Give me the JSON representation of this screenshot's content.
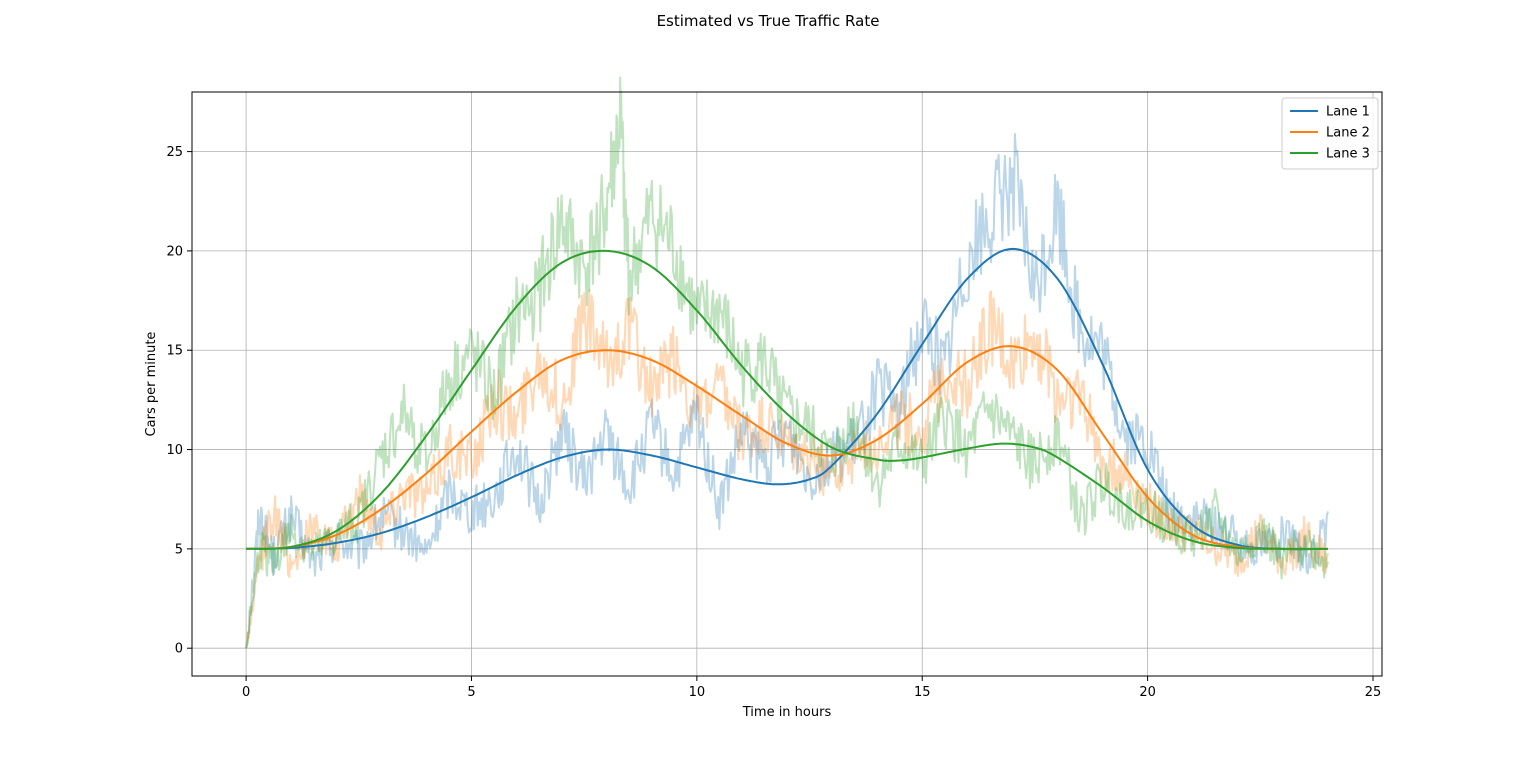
{
  "chart_data": {
    "type": "line",
    "title": "Estimated vs True Traffic Rate",
    "xlabel": "Time in hours",
    "ylabel": "Cars per minute",
    "xlim": [
      -1.2,
      25.2
    ],
    "ylim": [
      -1.4,
      28.0
    ],
    "xticks": [
      0,
      5,
      10,
      15,
      20,
      25
    ],
    "yticks": [
      0,
      5,
      10,
      15,
      20,
      25
    ],
    "grid": true,
    "legend_position": "top-right",
    "series": [
      {
        "name": "Lane 1",
        "color": "#1f77b4",
        "smooth": {
          "x": [
            0,
            1,
            2,
            3,
            4,
            5,
            6,
            7,
            8,
            9,
            10,
            11,
            11.8,
            12.5,
            13,
            14,
            15,
            16,
            17,
            18,
            19,
            20,
            21,
            22,
            23,
            24
          ],
          "y": [
            5.0,
            5.05,
            5.3,
            5.8,
            6.6,
            7.6,
            8.7,
            9.6,
            10.0,
            9.7,
            9.1,
            8.5,
            8.25,
            8.5,
            9.2,
            11.8,
            15.3,
            18.6,
            20.1,
            18.6,
            14.3,
            9.0,
            6.2,
            5.2,
            5.0,
            5.0
          ]
        },
        "noisy": {
          "x": [
            0,
            0.3,
            0.6,
            1.0,
            1.5,
            2.0,
            2.5,
            3.0,
            3.5,
            4.0,
            4.5,
            5.0,
            5.5,
            6.0,
            6.5,
            7.0,
            7.5,
            8.0,
            8.5,
            9.0,
            9.5,
            10.0,
            10.5,
            11.0,
            11.5,
            12.0,
            12.5,
            13.0,
            13.5,
            14.0,
            14.5,
            15.0,
            15.5,
            16.0,
            16.5,
            17.0,
            17.5,
            18.0,
            18.5,
            19.0,
            19.5,
            20.0,
            20.5,
            21.0,
            21.5,
            22.0,
            22.5,
            23.0,
            23.5,
            24.0
          ],
          "y": [
            0,
            6.8,
            4.6,
            6.6,
            4.3,
            5.6,
            4.8,
            6.6,
            5.9,
            4.7,
            8.0,
            6.9,
            7.6,
            10.2,
            7.1,
            11.0,
            8.4,
            10.8,
            8.0,
            11.2,
            8.6,
            11.8,
            7.0,
            10.8,
            9.2,
            11.0,
            8.7,
            9.6,
            10.2,
            13.0,
            12.1,
            16.4,
            14.1,
            19.8,
            21.5,
            23.9,
            17.8,
            22.2,
            16.1,
            14.8,
            10.6,
            10.3,
            6.8,
            6.4,
            6.3,
            5.4,
            5.2,
            5.6,
            4.6,
            5.8
          ]
        }
      },
      {
        "name": "Lane 2",
        "color": "#ff7f0e",
        "smooth": {
          "x": [
            0,
            1,
            2,
            3,
            4,
            5,
            6,
            7,
            8,
            9,
            10,
            11,
            12,
            13,
            14,
            15,
            16,
            17,
            18,
            19,
            20,
            21,
            22,
            23,
            24
          ],
          "y": [
            5.0,
            5.1,
            5.7,
            7.0,
            8.8,
            10.9,
            12.9,
            14.5,
            15.0,
            14.5,
            13.2,
            11.7,
            10.3,
            9.7,
            10.5,
            12.3,
            14.4,
            15.2,
            14.0,
            10.8,
            7.6,
            5.7,
            5.1,
            5.0,
            5.0
          ]
        },
        "noisy": {
          "x": [
            0,
            0.3,
            0.6,
            1.0,
            1.5,
            2.0,
            2.5,
            3.0,
            3.5,
            4.0,
            4.5,
            5.0,
            5.5,
            6.0,
            6.5,
            7.0,
            7.5,
            8.0,
            8.5,
            9.0,
            9.5,
            10.0,
            10.5,
            11.0,
            11.5,
            12.0,
            12.5,
            13.0,
            13.5,
            14.0,
            14.5,
            15.0,
            15.5,
            16.0,
            16.5,
            17.0,
            17.5,
            18.0,
            18.5,
            19.0,
            19.5,
            20.0,
            20.5,
            21.0,
            21.5,
            22.0,
            22.5,
            23.0,
            23.5,
            24.0
          ],
          "y": [
            0,
            4.4,
            6.9,
            4.2,
            6.1,
            4.9,
            7.8,
            5.9,
            8.2,
            7.6,
            10.1,
            9.3,
            12.6,
            11.4,
            14.7,
            12.1,
            16.8,
            14.2,
            16.2,
            12.9,
            14.6,
            11.8,
            12.9,
            10.4,
            11.2,
            10.1,
            9.6,
            8.8,
            9.8,
            10.4,
            11.6,
            10.8,
            14.0,
            13.2,
            16.4,
            14.1,
            15.8,
            12.7,
            12.8,
            9.4,
            8.8,
            7.2,
            6.1,
            5.7,
            5.1,
            4.4,
            5.8,
            4.3,
            5.6,
            4.2
          ]
        }
      },
      {
        "name": "Lane 3",
        "color": "#2ca02c",
        "smooth": {
          "x": [
            0,
            1,
            2,
            3,
            4,
            5,
            6,
            7,
            8,
            9,
            10,
            11,
            12,
            13,
            14,
            14.5,
            15,
            16,
            16.8,
            17.5,
            18,
            19,
            20,
            21,
            22,
            23,
            24
          ],
          "y": [
            5.0,
            5.1,
            5.9,
            7.8,
            10.7,
            14.0,
            17.2,
            19.4,
            20.0,
            19.2,
            17.0,
            14.2,
            11.8,
            10.1,
            9.5,
            9.45,
            9.6,
            10.05,
            10.3,
            10.1,
            9.6,
            8.1,
            6.4,
            5.4,
            5.05,
            5.0,
            5.0
          ]
        },
        "noisy": {
          "x": [
            0,
            0.3,
            0.6,
            1.0,
            1.5,
            2.0,
            2.5,
            3.0,
            3.5,
            4.0,
            4.5,
            5.0,
            5.5,
            6.0,
            6.5,
            7.0,
            7.5,
            8.0,
            8.3,
            8.5,
            9.0,
            9.5,
            10.0,
            10.5,
            11.0,
            11.5,
            12.0,
            12.5,
            13.0,
            13.5,
            14.0,
            14.5,
            15.0,
            15.5,
            16.0,
            16.5,
            17.0,
            17.5,
            18.0,
            18.5,
            19.0,
            19.5,
            20.0,
            20.5,
            21.0,
            21.5,
            22.0,
            22.5,
            23.0,
            23.5,
            24.0
          ],
          "y": [
            0,
            5.1,
            4.3,
            5.9,
            4.8,
            5.6,
            6.5,
            9.6,
            11.8,
            9.4,
            13.5,
            14.8,
            12.6,
            16.8,
            17.9,
            21.5,
            19.0,
            22.4,
            26.6,
            18.5,
            21.8,
            20.1,
            16.4,
            17.0,
            13.8,
            14.4,
            11.7,
            10.9,
            9.4,
            11.6,
            8.2,
            10.3,
            9.1,
            11.6,
            10.0,
            12.0,
            10.5,
            9.2,
            11.0,
            6.4,
            8.4,
            7.2,
            7.1,
            6.2,
            5.4,
            6.8,
            4.6,
            5.9,
            4.4,
            5.4,
            4.2
          ]
        }
      }
    ]
  }
}
